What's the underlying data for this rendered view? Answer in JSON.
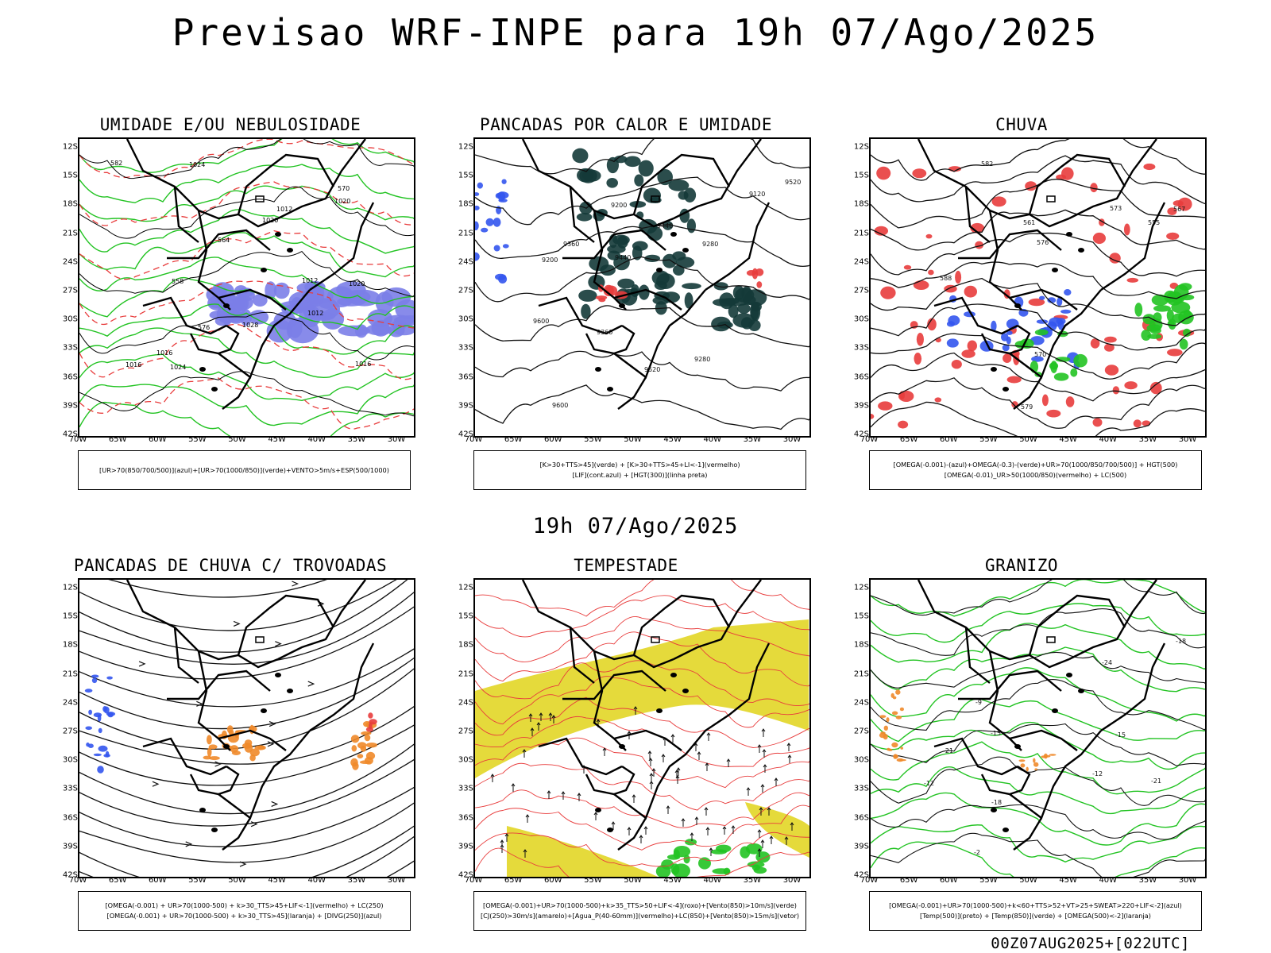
{
  "title": "Previsao WRF-INPE  para 19h 07/Ago/2025",
  "mid_title": "19h 07/Ago/2025",
  "footer": "00Z07AUG2025+[022UTC]",
  "axes": {
    "lat_labels": [
      "12S",
      "15S",
      "18S",
      "21S",
      "24S",
      "27S",
      "30S",
      "33S",
      "36S",
      "39S",
      "42S"
    ],
    "lon_labels": [
      "70W",
      "65W",
      "60W",
      "55W",
      "50W",
      "45W",
      "40W",
      "35W",
      "30W"
    ]
  },
  "colors": {
    "green": "#22c322",
    "red": "#e83c3c",
    "blue": "#3355ee",
    "purple": "#7b7ee8",
    "orange": "#f08a2a",
    "yellow": "#e4d830",
    "darkgreen": "#143a38"
  },
  "panels": [
    {
      "title": "UMIDADE E/OU NEBULOSIDADE",
      "legend_lines": [
        "[UR>70(850/700/500)](azul)+[UR>70(1000/850)](verde)+VENTO>5m/s+ESP(500/1000)"
      ],
      "contour_labels": [
        "1016",
        "1012",
        "1012",
        "1012",
        "1016",
        "1020",
        "1024",
        "1028",
        "1020",
        "1024",
        "1020",
        "1016",
        "570",
        "576",
        "582",
        "564",
        "558"
      ]
    },
    {
      "title": "PANCADAS POR CALOR E UMIDADE",
      "legend_lines": [
        "[K>30+TTS>45](verde) + [K>30+TTS>45+LI<-1](vermelho)",
        "[LIF](cont.azul) + [HGT(300)](linha preta)"
      ],
      "contour_labels": [
        "9600",
        "9520",
        "9440",
        "9360",
        "9280",
        "9200",
        "9120",
        "9600",
        "9520",
        "9440",
        "9360",
        "9280",
        "9200"
      ]
    },
    {
      "title": "CHUVA",
      "legend_lines": [
        "[OMEGA(-0.001)-(azul)+OMEGA(-0.3)-(verde)+UR>70(1000/850/700/500)] + HGT(500)",
        "[OMEGA(-0.01)_UR>50(1000/850)(vermelho) + LC(500)"
      ],
      "contour_labels": [
        "588",
        "582",
        "576",
        "573",
        "570",
        "567",
        "561",
        "555",
        "579"
      ]
    },
    {
      "title": "PANCADAS DE CHUVA C/ TROVOADAS",
      "legend_lines": [
        "[OMEGA(-0.001) + UR>70(1000-500) + k>30_TTS>45+LIF<-1](vermelho) + LC(250)",
        "[OMEGA(-0.001) + UR>70(1000-500) + k>30_TTS>45](laranja) + [DIVG(250)](azul)"
      ],
      "contour_labels": []
    },
    {
      "title": "TEMPESTADE",
      "legend_lines": [
        "[OMEGA(-0.001)+UR>70(1000-500)+k>35_TTS>50+LIF<-4](roxo)+[Vento(850)>10m/s](verde)",
        "[CJ(250)>30m/s](amarelo)+[Agua_P(40-60mm)](vermelho)+LC(850)+[Vento(850)>15m/s](vetor)"
      ],
      "contour_labels": []
    },
    {
      "title": "GRANIZO",
      "legend_lines": [
        "[OMEGA(-0.001)+UR>70(1000-500)+k<60+TTS>52+VT>25+SWEAT>220+LIF<-2](azul)",
        "[Temp(500)](preto) + [Temp(850)](verde) + [OMEGA(500)<-2](laranja)"
      ],
      "contour_labels": [
        "-2",
        "-12",
        "-15",
        "-18",
        "-21",
        "-24",
        "-21",
        "-18",
        "-15",
        "-12",
        "-9"
      ]
    }
  ]
}
